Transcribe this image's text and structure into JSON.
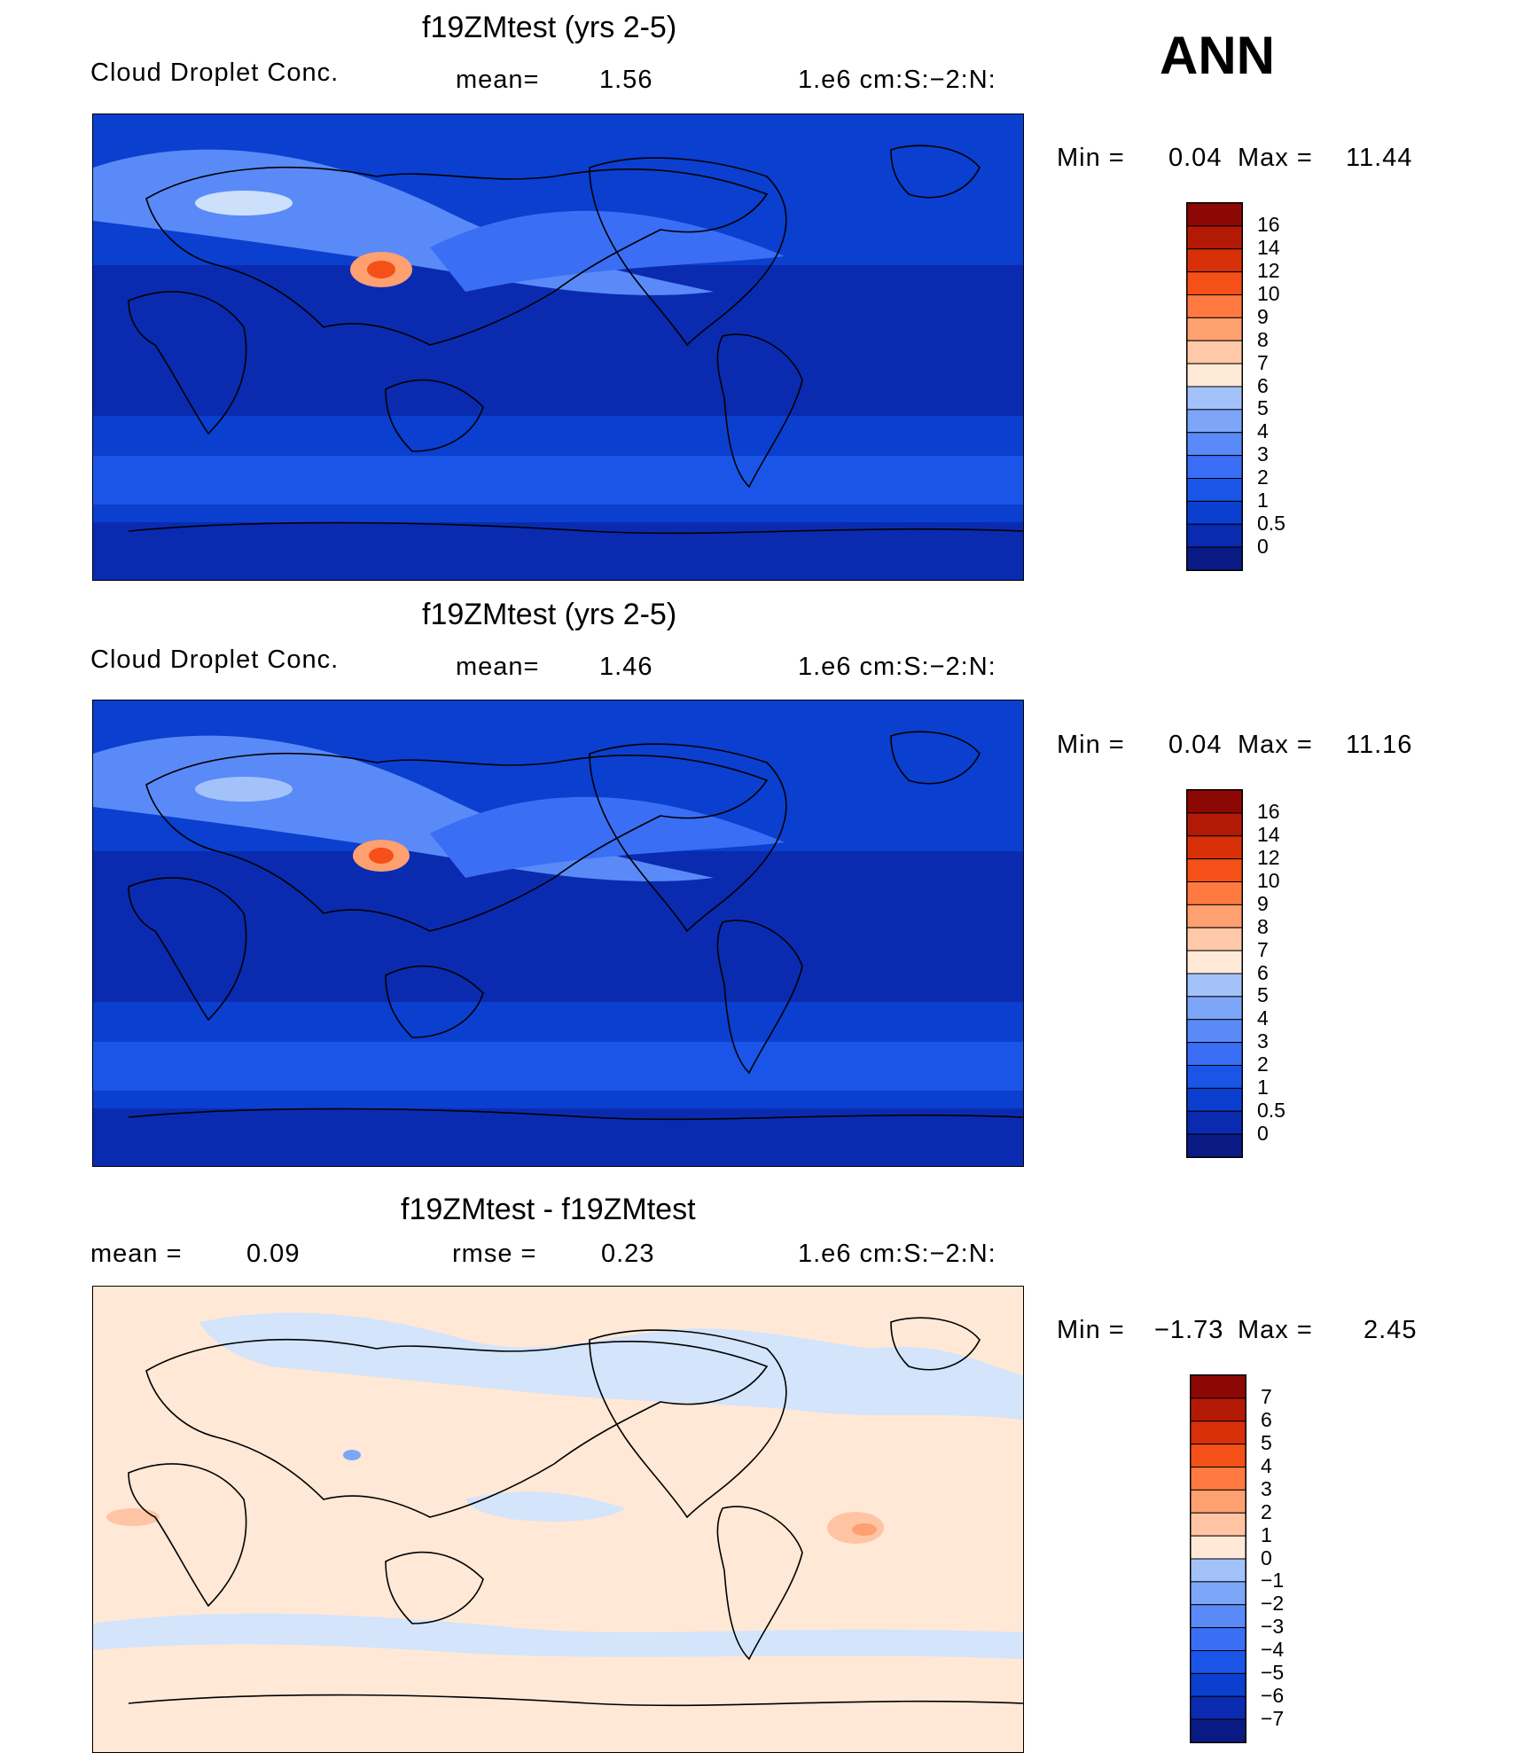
{
  "season": "ANN",
  "colors": {
    "abs_scale": [
      "#0a1a85",
      "#0a2bb0",
      "#0a3fcf",
      "#1a55e8",
      "#3a6ef5",
      "#5a8af8",
      "#7ea6f8",
      "#a4c2fa",
      "#cde0fb",
      "#ffead8",
      "#ffc8a8",
      "#ffa070",
      "#ff7a40",
      "#f45018",
      "#d83008",
      "#b31a06",
      "#8c0804"
    ],
    "diff_scale": [
      "#0a1a85",
      "#0a2bb0",
      "#0a3fcf",
      "#1a55e8",
      "#3a6ef5",
      "#5a8af8",
      "#7ea6f8",
      "#a4c2fa",
      "#d3e4fb",
      "#ffe8d6",
      "#ffc4a4",
      "#ffa070",
      "#ff7a40",
      "#f45018",
      "#d83008",
      "#b31a06",
      "#8c0804"
    ],
    "land_line": "#000000"
  },
  "panels": [
    {
      "title": "f19ZMtest (yrs 2-5)",
      "variable": "Cloud Droplet Conc.",
      "mean_label": "mean=",
      "mean_value": "1.56",
      "units": "1.e6 cm:S:−2:N:",
      "min_label": "Min  =",
      "min_value": "0.04",
      "max_label": "Max  =",
      "max_value": "11.44",
      "colorbar_levels": [
        "16",
        "14",
        "12",
        "10",
        "9",
        "8",
        "7",
        "6",
        "5",
        "4",
        "3",
        "2",
        "1",
        "0.5",
        "0"
      ]
    },
    {
      "title": "f19ZMtest (yrs 2-5)",
      "variable": "Cloud Droplet Conc.",
      "mean_label": "mean=",
      "mean_value": "1.46",
      "units": "1.e6 cm:S:−2:N:",
      "min_label": "Min  =",
      "min_value": "0.04",
      "max_label": "Max  =",
      "max_value": "11.16",
      "colorbar_levels": [
        "16",
        "14",
        "12",
        "10",
        "9",
        "8",
        "7",
        "6",
        "5",
        "4",
        "3",
        "2",
        "1",
        "0.5",
        "0"
      ]
    },
    {
      "title": "f19ZMtest - f19ZMtest",
      "mean_label": "mean  =",
      "mean_value": "0.09",
      "rmse_label": "rmse  =",
      "rmse_value": "0.23",
      "units": "1.e6 cm:S:−2:N:",
      "min_label": "Min  =",
      "min_value": "−1.73",
      "max_label": "Max  =",
      "max_value": "2.45",
      "colorbar_levels": [
        "7",
        "6",
        "5",
        "4",
        "3",
        "2",
        "1",
        "0",
        "−1",
        "−2",
        "−3",
        "−4",
        "−5",
        "−6",
        "−7"
      ]
    }
  ]
}
